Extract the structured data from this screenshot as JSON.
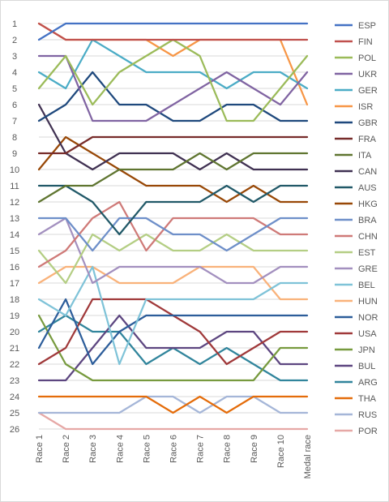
{
  "chart_data": {
    "type": "line",
    "title": "",
    "xlabel": "",
    "ylabel": "",
    "categories": [
      "Race 1",
      "Race 2",
      "Race 3",
      "Race 4",
      "Race 5",
      "Race 6",
      "Race 7",
      "Race 8",
      "Race 9",
      "Race 10",
      "Medal race"
    ],
    "y_ticks": [
      "1",
      "2",
      "3",
      "4",
      "5",
      "6",
      "7",
      "8",
      "9",
      "10",
      "11",
      "12",
      "13",
      "14",
      "15",
      "16",
      "17",
      "18",
      "19",
      "20",
      "21",
      "22",
      "23",
      "24",
      "25",
      "26"
    ],
    "ylim": [
      1,
      26
    ],
    "y_inverted": true,
    "grid": true,
    "legend_position": "right",
    "series": [
      {
        "name": "ESP",
        "color": "#4472C4",
        "values": [
          2,
          1,
          1,
          1,
          1,
          1,
          1,
          1,
          1,
          1,
          1
        ]
      },
      {
        "name": "FIN",
        "color": "#C0504D",
        "values": [
          1,
          2,
          2,
          2,
          2,
          2,
          2,
          2,
          2,
          2,
          2
        ]
      },
      {
        "name": "POL",
        "color": "#9BBB59",
        "values": [
          5,
          3,
          6,
          4,
          3,
          2,
          3,
          7,
          7,
          5,
          3
        ]
      },
      {
        "name": "UKR",
        "color": "#8064A2",
        "values": [
          3,
          3,
          7,
          7,
          7,
          6,
          5,
          4,
          5,
          6,
          4
        ]
      },
      {
        "name": "GER",
        "color": "#4BACC6",
        "values": [
          4,
          5,
          2,
          3,
          4,
          4,
          4,
          5,
          4,
          4,
          5
        ]
      },
      {
        "name": "ISR",
        "color": "#F79646",
        "values": [
          1,
          2,
          2,
          2,
          2,
          3,
          2,
          2,
          2,
          2,
          6
        ]
      },
      {
        "name": "GBR",
        "color": "#1F497D",
        "values": [
          7,
          6,
          4,
          6,
          6,
          7,
          7,
          6,
          6,
          7,
          7
        ]
      },
      {
        "name": "FRA",
        "color": "#772C2A",
        "values": [
          9,
          9,
          8,
          8,
          8,
          8,
          8,
          8,
          8,
          8,
          8
        ]
      },
      {
        "name": "ITA",
        "color": "#5F7530",
        "values": [
          12,
          11,
          11,
          10,
          10,
          10,
          9,
          10,
          9,
          9,
          9
        ]
      },
      {
        "name": "CAN",
        "color": "#403152",
        "values": [
          6,
          9,
          10,
          9,
          9,
          9,
          10,
          9,
          10,
          10,
          10
        ]
      },
      {
        "name": "AUS",
        "color": "#215968",
        "values": [
          11,
          11,
          12,
          14,
          12,
          12,
          12,
          11,
          12,
          11,
          11
        ]
      },
      {
        "name": "HKG",
        "color": "#984807",
        "values": [
          10,
          8,
          9,
          10,
          11,
          11,
          11,
          12,
          11,
          12,
          12
        ]
      },
      {
        "name": "BRA",
        "color": "#6E8FC9",
        "values": [
          13,
          13,
          15,
          13,
          13,
          14,
          14,
          15,
          14,
          13,
          13
        ]
      },
      {
        "name": "CHN",
        "color": "#CF7A78",
        "values": [
          16,
          15,
          13,
          12,
          15,
          13,
          13,
          13,
          13,
          14,
          14
        ]
      },
      {
        "name": "EST",
        "color": "#B4CE84",
        "values": [
          15,
          17,
          14,
          15,
          14,
          15,
          15,
          14,
          15,
          15,
          15
        ]
      },
      {
        "name": "GRE",
        "color": "#A390BF",
        "values": [
          14,
          13,
          17,
          16,
          16,
          16,
          16,
          17,
          17,
          16,
          16
        ]
      },
      {
        "name": "BEL",
        "color": "#7FC3D8",
        "values": [
          18,
          19,
          16,
          22,
          18,
          18,
          18,
          18,
          18,
          17,
          17
        ]
      },
      {
        "name": "HUN",
        "color": "#F9B27A",
        "values": [
          17,
          16,
          16,
          17,
          17,
          17,
          16,
          16,
          16,
          18,
          18
        ]
      },
      {
        "name": "NOR",
        "color": "#2C5D9A",
        "values": [
          21,
          18,
          22,
          20,
          19,
          19,
          19,
          19,
          19,
          19,
          19
        ]
      },
      {
        "name": "USA",
        "color": "#A0393A",
        "values": [
          22,
          21,
          18,
          18,
          18,
          19,
          20,
          22,
          21,
          20,
          20
        ]
      },
      {
        "name": "JPN",
        "color": "#779A3E",
        "values": [
          19,
          22,
          23,
          23,
          23,
          23,
          23,
          23,
          23,
          21,
          21
        ]
      },
      {
        "name": "BUL",
        "color": "#5D4680",
        "values": [
          23,
          23,
          21,
          19,
          21,
          21,
          21,
          20,
          20,
          22,
          22
        ]
      },
      {
        "name": "ARG",
        "color": "#31859C",
        "values": [
          20,
          19,
          20,
          20,
          22,
          21,
          22,
          21,
          22,
          23,
          23
        ]
      },
      {
        "name": "THA",
        "color": "#E46C0A",
        "values": [
          24,
          24,
          24,
          24,
          24,
          25,
          24,
          25,
          24,
          24,
          24
        ]
      },
      {
        "name": "RUS",
        "color": "#A5B6D8",
        "values": [
          25,
          25,
          25,
          25,
          24,
          24,
          25,
          24,
          24,
          25,
          25
        ]
      },
      {
        "name": "POR",
        "color": "#E6A8A6",
        "values": [
          25,
          26,
          26,
          26,
          26,
          26,
          26,
          26,
          26,
          26,
          26
        ]
      }
    ]
  }
}
